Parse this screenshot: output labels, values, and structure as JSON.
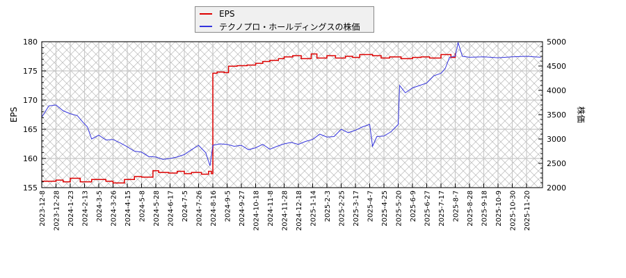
{
  "chart_data": {
    "type": "line",
    "title": "",
    "legend": {
      "position": "top-center",
      "entries": [
        {
          "name": "EPS",
          "color": "#dd0000"
        },
        {
          "name": "テクノプロ・ホールディングスの株価",
          "color": "#3333dd"
        }
      ]
    },
    "xlabel": "",
    "ylabel_left": "EPS",
    "ylabel_right": "株価",
    "ylim_left": [
      155,
      180
    ],
    "ylim_right": [
      2000,
      5000
    ],
    "yticks_left": [
      155,
      160,
      165,
      170,
      175,
      180
    ],
    "yticks_right": [
      2000,
      2500,
      3000,
      3500,
      4000,
      4500,
      5000
    ],
    "xticks": [
      "2023-12-8",
      "2023-12-28",
      "2024-1-23",
      "2024-2-13",
      "2024-3-5",
      "2024-3-26",
      "2024-4-15",
      "2024-5-8",
      "2024-5-28",
      "2024-6-17",
      "2024-7-5",
      "2024-7-26",
      "2024-8-16",
      "2024-9-5",
      "2024-9-27",
      "2024-10-18",
      "2024-11-8",
      "2024-11-28",
      "2024-12-18",
      "2025-1-14",
      "2025-2-3",
      "2025-2-25",
      "2025-3-17",
      "2025-4-7",
      "2025-4-25",
      "2025-5-20",
      "2025-6-9",
      "2025-6-27",
      "2025-7-17",
      "2025-8-7",
      "2025-8-28",
      "2025-9-18",
      "2025-10-9",
      "2025-10-30",
      "2025-11-20"
    ],
    "grid": true,
    "series": [
      {
        "name": "EPS",
        "axis": "left",
        "color": "#dd0000",
        "x_index": [
          0,
          1,
          1.5,
          2,
          2.7,
          3.5,
          4.5,
          5,
          5.8,
          6.5,
          7,
          7.8,
          8.2,
          8.9,
          9.5,
          10,
          10.5,
          11.2,
          11.7,
          11.9,
          12,
          12.3,
          12.8,
          13.1,
          13.7,
          14.4,
          15,
          15.5,
          16,
          16.6,
          17,
          17.6,
          18.2,
          18.9,
          19.3,
          20,
          20.6,
          21.3,
          21.8,
          22.3,
          23.2,
          23.8,
          24.4,
          25.2,
          26,
          26.6,
          27.2,
          28,
          28.7,
          29
        ],
        "values": [
          156.1,
          156.3,
          156.0,
          156.6,
          156.0,
          156.4,
          156.1,
          155.8,
          156.4,
          156.9,
          156.8,
          157.9,
          157.6,
          157.5,
          157.8,
          157.4,
          157.6,
          157.3,
          157.8,
          157.4,
          174.6,
          174.8,
          174.7,
          175.8,
          175.9,
          176.0,
          176.3,
          176.6,
          176.8,
          177.1,
          177.4,
          177.6,
          177.1,
          177.9,
          177.2,
          177.6,
          177.2,
          177.5,
          177.3,
          177.8,
          177.6,
          177.2,
          177.4,
          177.1,
          177.3,
          177.4,
          177.2,
          177.8,
          177.3,
          178.0
        ]
      },
      {
        "name": "テクノプロ・ホールディングスの株価",
        "axis": "right",
        "color": "#3333dd",
        "x_index": [
          0,
          0.5,
          1,
          1.5,
          2,
          2.5,
          2.9,
          3.2,
          3.5,
          4,
          4.5,
          5,
          5.5,
          6,
          6.5,
          7,
          7.5,
          8,
          8.5,
          9,
          9.5,
          10,
          10.5,
          11,
          11.5,
          11.8,
          12,
          12.5,
          13,
          13.5,
          14,
          14.5,
          15,
          15.5,
          16,
          16.5,
          17,
          17.5,
          18,
          18.5,
          19,
          19.5,
          20,
          20.5,
          21,
          21.5,
          22,
          22.5,
          23,
          23.2,
          23.5,
          24,
          24.5,
          25,
          25.1,
          25.5,
          26,
          26.5,
          27,
          27.5,
          28,
          28.3,
          28.6,
          29,
          29.2,
          29.5,
          30,
          31,
          32,
          33,
          34,
          35
        ],
        "values": [
          3450,
          3680,
          3700,
          3580,
          3520,
          3480,
          3340,
          3250,
          3000,
          3080,
          2980,
          2990,
          2920,
          2840,
          2750,
          2730,
          2640,
          2630,
          2580,
          2600,
          2630,
          2680,
          2780,
          2870,
          2720,
          2450,
          2870,
          2900,
          2890,
          2850,
          2870,
          2780,
          2820,
          2890,
          2790,
          2850,
          2900,
          2930,
          2890,
          2950,
          2990,
          3100,
          3040,
          3050,
          3200,
          3130,
          3180,
          3250,
          3300,
          2850,
          3050,
          3060,
          3150,
          3300,
          4100,
          3950,
          4050,
          4100,
          4150,
          4300,
          4350,
          4450,
          4680,
          4700,
          4980,
          4700,
          4680,
          4690,
          4670,
          4690,
          4700,
          4680
        ]
      }
    ]
  }
}
